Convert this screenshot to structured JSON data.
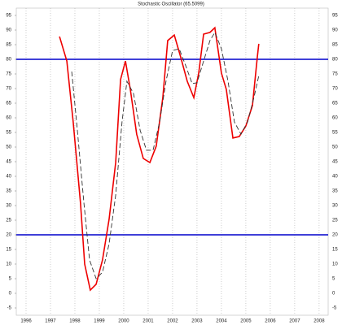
{
  "chart_data": {
    "type": "line",
    "title": "Stochastic Oscillator (65.5099)",
    "xlim": [
      1995.6,
      2008.37
    ],
    "xticks": [
      1996,
      1997,
      1998,
      1999,
      2000,
      2001,
      2002,
      2003,
      2004,
      2005,
      2006,
      2007,
      2008
    ],
    "ylim": [
      -7.5,
      97.5
    ],
    "yticks": [
      -5,
      0,
      5,
      10,
      15,
      20,
      25,
      30,
      35,
      40,
      45,
      50,
      55,
      60,
      65,
      70,
      75,
      80,
      85,
      90,
      95
    ],
    "grid": true,
    "hlines": [
      80,
      20
    ],
    "hline_color": "#0000cc",
    "series": [
      {
        "color": "#ee0000",
        "dashed": false,
        "x": [
          1997.37,
          1997.67,
          1997.93,
          1998.23,
          1998.4,
          1998.63,
          1998.87,
          1999.13,
          1999.4,
          1999.67,
          1999.87,
          2000.07,
          2000.27,
          2000.53,
          2000.8,
          2001.07,
          2001.33,
          2001.6,
          2001.8,
          2002.07,
          2002.33,
          2002.6,
          2002.87,
          2003.07,
          2003.27,
          2003.53,
          2003.73,
          2004.0,
          2004.2,
          2004.47,
          2004.73,
          2005.0,
          2005.27,
          2005.47,
          2005.53
        ],
        "values": [
          87.8,
          79.4,
          58.6,
          30.8,
          10,
          1.1,
          3.1,
          11.4,
          25.3,
          44.7,
          73.1,
          79.4,
          69.7,
          54.4,
          46.1,
          44.7,
          50.3,
          66.9,
          86.4,
          88.3,
          80.8,
          72.5,
          66.9,
          75.3,
          88.6,
          89.2,
          90.8,
          75.3,
          69.7,
          53.1,
          53.6,
          57.2,
          64.2,
          80.8,
          85.3
        ]
      },
      {
        "color": "#333333",
        "dashed": true,
        "x": [
          1997.87,
          1998.1,
          1998.37,
          1998.6,
          1998.87,
          1999.13,
          1999.4,
          1999.67,
          1999.93,
          2000.13,
          2000.4,
          2000.67,
          2000.93,
          2001.2,
          2001.47,
          2001.73,
          2002.0,
          2002.27,
          2002.53,
          2002.8,
          2003.0,
          2003.27,
          2003.53,
          2003.73,
          2004.0,
          2004.27,
          2004.53,
          2004.8,
          2005.07,
          2005.33,
          2005.53
        ],
        "values": [
          75.8,
          55.8,
          30.8,
          11.4,
          5,
          7.2,
          16.9,
          33.6,
          58.6,
          72.5,
          68.3,
          55.8,
          48.9,
          48.9,
          58.6,
          72.5,
          83,
          83.6,
          78,
          71.7,
          72,
          79.4,
          86.4,
          89.2,
          83.6,
          72.5,
          58.6,
          54.4,
          58.6,
          66.9,
          74.4
        ]
      }
    ]
  }
}
